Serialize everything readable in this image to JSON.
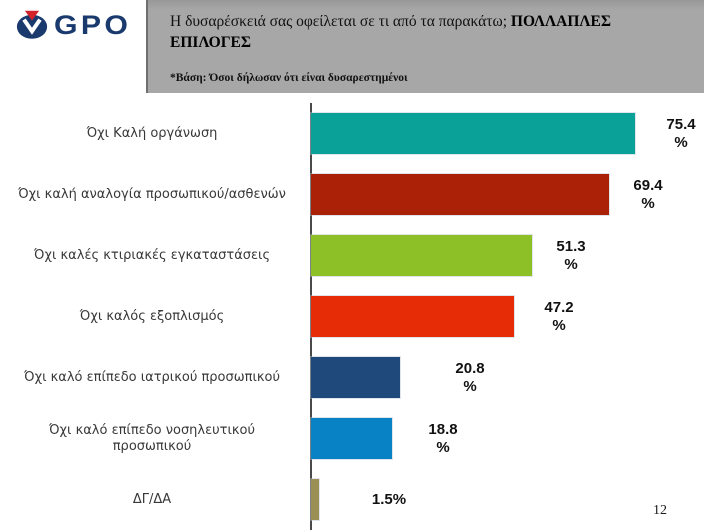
{
  "logo": {
    "text": "GPO"
  },
  "header": {
    "title_normal": "Η δυσαρέσκειά σας οφείλεται σε τι από τα παρακάτω; ",
    "title_bold": "ΠΟΛΛΑΠΛΕΣ ΕΠΙΛΟΓΕΣ",
    "footnote": "*Βάση: Όσοι δήλωσαν ότι είναι δυσαρεστημένοι"
  },
  "page_number": "12",
  "colors": {
    "header_bg": "#a7a7a7",
    "axis": "#4a4a4a",
    "logo_navy": "#1a3a6e",
    "logo_red": "#d2232a"
  },
  "chart_data": {
    "type": "bar",
    "orientation": "horizontal",
    "unit": "%",
    "xlim": [
      0,
      90
    ],
    "grid": false,
    "legend": "none",
    "title": "Η δυσαρέσκειά σας οφείλεται σε τι από τα παρακάτω; ΠΟΛΛΑΠΛΕΣ ΕΠΙΛΟΓΕΣ",
    "categories": [
      "Όχι Καλή οργάνωση",
      "Όχι καλή αναλογία προσωπικού/ασθενών",
      "Όχι καλές κτιριακές εγκαταστάσεις",
      "Όχι καλός εξοπλισμός",
      "Όχι καλό επίπεδο ιατρικού προσωπικού",
      "Όχι καλό επίπεδο νοσηλευτικού προσωπικού",
      "ΔΓ/ΔΑ"
    ],
    "values": [
      75.4,
      69.4,
      51.3,
      47.2,
      20.8,
      18.8,
      1.5
    ],
    "items": [
      {
        "label_lines": [
          "Όχι Καλή οργάνωση"
        ],
        "value": 75.4,
        "value_lines": [
          "75.4",
          "%"
        ],
        "color": "#0AA199",
        "label_gap": 12
      },
      {
        "label_lines": [
          "Όχι  καλή αναλογία προσωπικού/ασθενών"
        ],
        "value": 69.4,
        "value_lines": [
          "69.4",
          "%"
        ],
        "color": "#AA2108",
        "label_gap": 5
      },
      {
        "label_lines": [
          "Όχι καλές  κτιριακές εγκαταστάσεις"
        ],
        "value": 51.3,
        "value_lines": [
          "51.3",
          "%"
        ],
        "color": "#8DC026",
        "label_gap": 5
      },
      {
        "label_lines": [
          "Όχι καλός εξοπλισμός"
        ],
        "value": 47.2,
        "value_lines": [
          "47.2",
          "%"
        ],
        "color": "#E62B07",
        "label_gap": 11
      },
      {
        "label_lines": [
          "Όχι καλό επίπεδο ιατρικού προσωπικού"
        ],
        "value": 20.8,
        "value_lines": [
          "20.8",
          "%"
        ],
        "color": "#20497B",
        "label_gap": 36
      },
      {
        "label_lines": [
          "Όχι  καλό επίπεδο  νοσηλευτικού",
          "προσωπικού"
        ],
        "value": 18.8,
        "value_lines": [
          "18.8",
          "%"
        ],
        "color": "#0981C5",
        "label_gap": 17
      },
      {
        "label_lines": [
          "ΔΓ/ΔΑ"
        ],
        "value": 1.5,
        "value_lines": [
          "1.5%"
        ],
        "color": "#9C8F55",
        "label_gap": 36
      }
    ]
  }
}
